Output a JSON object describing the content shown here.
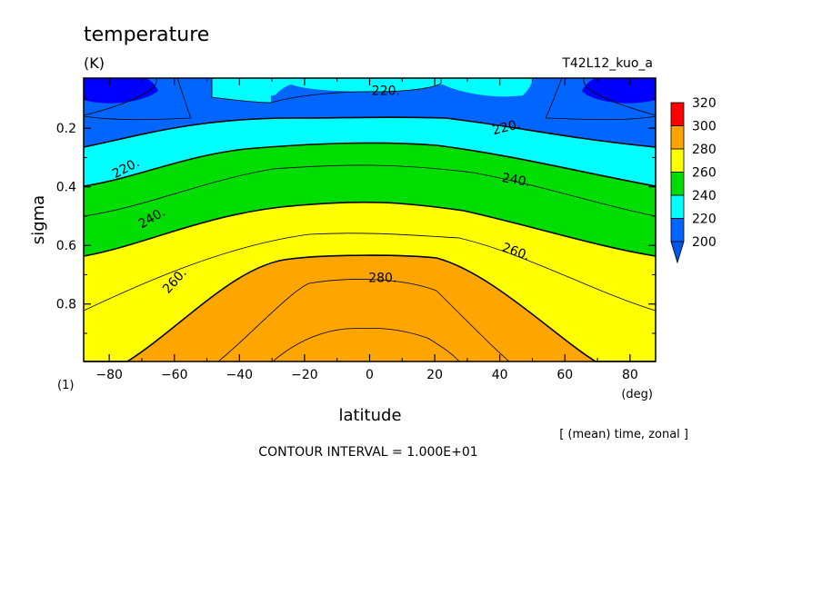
{
  "chart_data": {
    "type": "heatmap",
    "title": "temperature",
    "units": "(K)",
    "run_label": "T42L12_kuo_a",
    "xlabel": "latitude",
    "xunit": "(deg)",
    "ylabel": "sigma",
    "yunit": "(1)",
    "averaging_note": "[ (mean) time, zonal ]",
    "contour_interval_text": "CONTOUR INTERVAL = 1.000E+01",
    "xlim": [
      -87.8638,
      87.8638
    ],
    "ylim": [
      0.0289,
      0.9961
    ],
    "y_reversed": true,
    "x_ticks": [
      -80,
      -60,
      -40,
      -20,
      0,
      20,
      40,
      60,
      80
    ],
    "x_tick_labels": [
      "−80",
      "−60",
      "−40",
      "−20",
      "0",
      "20",
      "40",
      "60",
      "80"
    ],
    "y_ticks": [
      0.2,
      0.4,
      0.6,
      0.8
    ],
    "y_tick_labels": [
      "0.2",
      "0.4",
      "0.6",
      "0.8"
    ],
    "colorbar": {
      "levels": [
        "320",
        "300",
        "280",
        "260",
        "240",
        "220",
        "200"
      ],
      "colors": [
        "#ff0000",
        "#ffa500",
        "#ffff00",
        "#00dd00",
        "#00ffff",
        "#0066ff",
        "#0000ff"
      ],
      "under_color": "#0066ff"
    },
    "contour_labels": [
      {
        "text": "220.",
        "lat": 5,
        "sigma": 0.07
      },
      {
        "text": "220.",
        "lat": 42,
        "sigma": 0.195
      },
      {
        "text": "220.",
        "lat": -75,
        "sigma": 0.335
      },
      {
        "text": "240.",
        "lat": 45,
        "sigma": 0.375
      },
      {
        "text": "240.",
        "lat": -67,
        "sigma": 0.505
      },
      {
        "text": "260.",
        "lat": 45,
        "sigma": 0.62
      },
      {
        "text": "260.",
        "lat": -60,
        "sigma": 0.72
      },
      {
        "text": "280.",
        "lat": 4,
        "sigma": 0.71
      }
    ],
    "bands": [
      {
        "name": "200-210",
        "color": "#0000ff"
      },
      {
        "name": "210-220",
        "color": "#0066ff"
      },
      {
        "name": "220-230",
        "color": "#00ffff"
      },
      {
        "name": "230-240",
        "color": "#00ffff"
      },
      {
        "name": "240-250",
        "color": "#00dd00"
      },
      {
        "name": "250-260",
        "color": "#00dd00"
      },
      {
        "name": "260-270",
        "color": "#ffff00"
      },
      {
        "name": "270-280",
        "color": "#ffff00"
      },
      {
        "name": "280-290",
        "color": "#ffa500"
      }
    ]
  }
}
